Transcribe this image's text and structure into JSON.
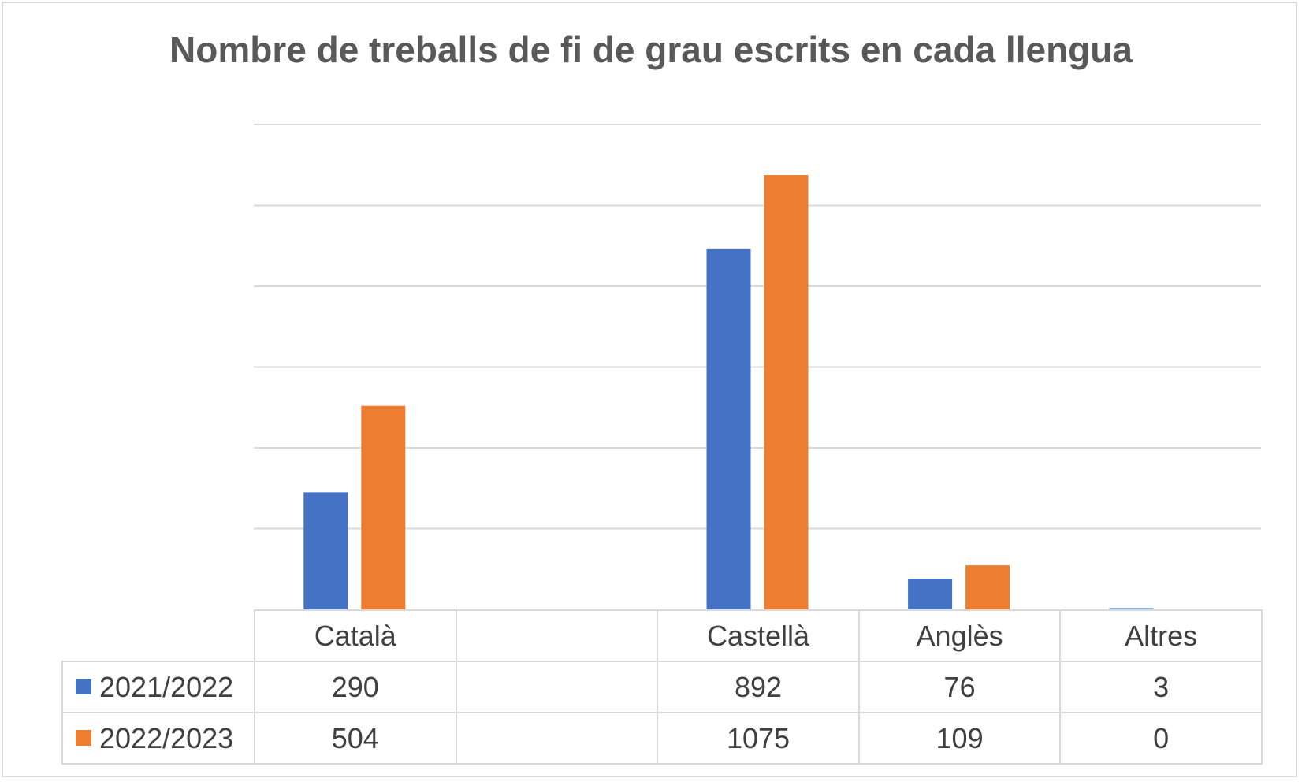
{
  "chart_data": {
    "type": "bar",
    "title": "Nombre de treballs de fi de grau escrits en cada llengua",
    "categories": [
      "Català",
      "",
      "Castellà",
      "Anglès",
      "Altres"
    ],
    "series": [
      {
        "name": "2021/2022",
        "color": "#4472c4",
        "values": [
          290,
          null,
          892,
          76,
          3
        ]
      },
      {
        "name": "2022/2023",
        "color": "#ed7d31",
        "values": [
          504,
          null,
          1075,
          109,
          0
        ]
      }
    ],
    "ylim": [
      0,
      1200
    ],
    "gridlines": true,
    "legend": "data-table",
    "table": {
      "rows": [
        {
          "name": "2021/2022",
          "cells": [
            "290",
            "",
            "892",
            "76",
            "3"
          ]
        },
        {
          "name": "2022/2023",
          "cells": [
            "504",
            "",
            "1075",
            "109",
            "0"
          ]
        }
      ]
    }
  }
}
